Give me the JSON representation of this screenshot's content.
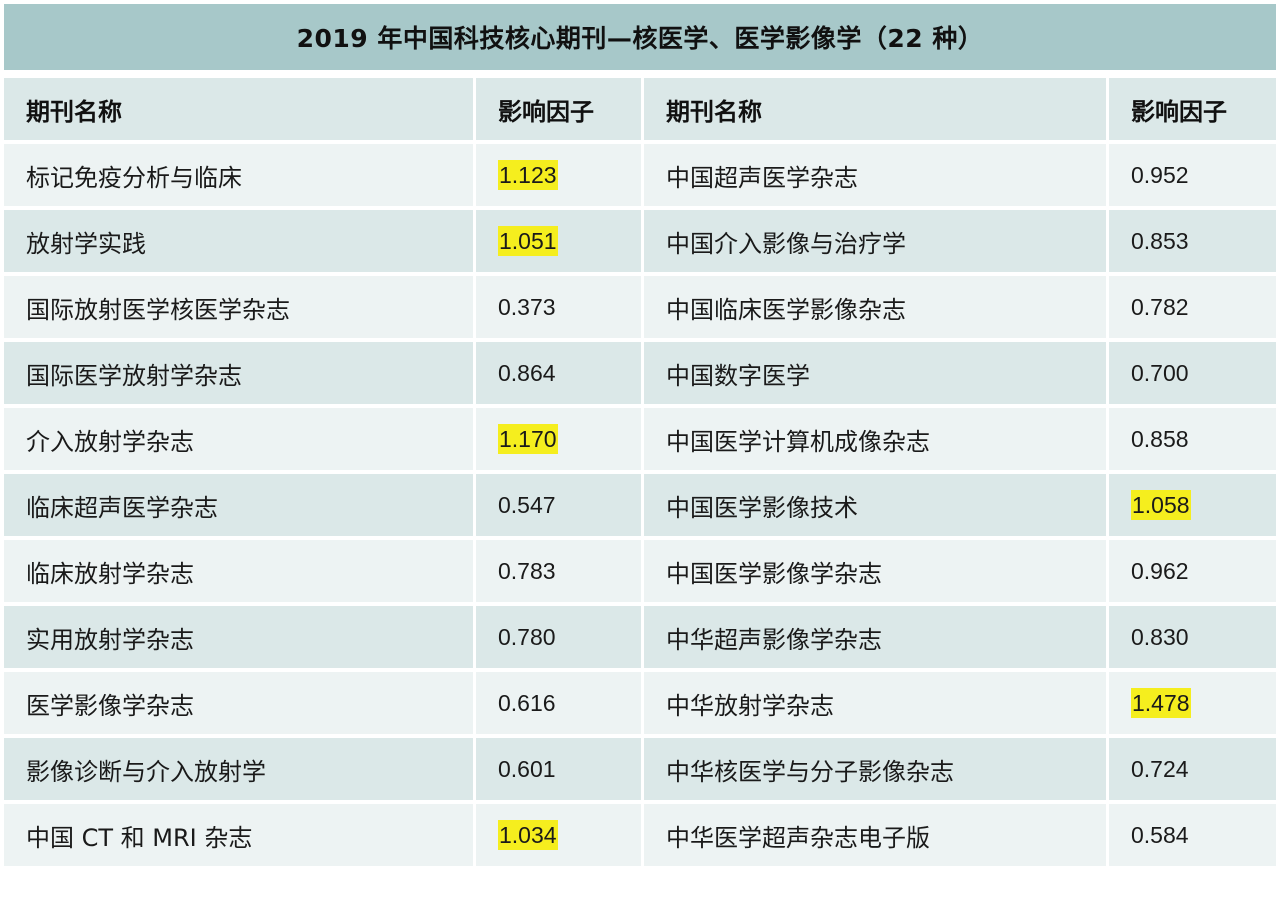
{
  "title": "2019 年中国科技核心期刊—核医学、医学影像学（22 种）",
  "headers": {
    "name_left": "期刊名称",
    "if_left": "影响因子",
    "name_right": "期刊名称",
    "if_right": "影响因子"
  },
  "highlight_color": "#f5ee1e",
  "rows": [
    {
      "left_name": "标记免疫分析与临床",
      "left_if": "1.123",
      "left_hl": true,
      "right_name": "中国超声医学杂志",
      "right_if": "0.952",
      "right_hl": false
    },
    {
      "left_name": "放射学实践",
      "left_if": "1.051",
      "left_hl": true,
      "right_name": "中国介入影像与治疗学",
      "right_if": "0.853",
      "right_hl": false
    },
    {
      "left_name": "国际放射医学核医学杂志",
      "left_if": "0.373",
      "left_hl": false,
      "right_name": "中国临床医学影像杂志",
      "right_if": "0.782",
      "right_hl": false
    },
    {
      "left_name": "国际医学放射学杂志",
      "left_if": "0.864",
      "left_hl": false,
      "right_name": "中国数字医学",
      "right_if": "0.700",
      "right_hl": false
    },
    {
      "left_name": "介入放射学杂志",
      "left_if": "1.170",
      "left_hl": true,
      "right_name": "中国医学计算机成像杂志",
      "right_if": "0.858",
      "right_hl": false
    },
    {
      "left_name": "临床超声医学杂志",
      "left_if": "0.547",
      "left_hl": false,
      "right_name": "中国医学影像技术",
      "right_if": "1.058",
      "right_hl": true
    },
    {
      "left_name": "临床放射学杂志",
      "left_if": "0.783",
      "left_hl": false,
      "right_name": "中国医学影像学杂志",
      "right_if": "0.962",
      "right_hl": false
    },
    {
      "left_name": "实用放射学杂志",
      "left_if": "0.780",
      "left_hl": false,
      "right_name": "中华超声影像学杂志",
      "right_if": "0.830",
      "right_hl": false
    },
    {
      "left_name": "医学影像学杂志",
      "left_if": "0.616",
      "left_hl": false,
      "right_name": "中华放射学杂志",
      "right_if": "1.478",
      "right_hl": true
    },
    {
      "left_name": "影像诊断与介入放射学",
      "left_if": "0.601",
      "left_hl": false,
      "right_name": "中华核医学与分子影像杂志",
      "right_if": "0.724",
      "right_hl": false
    },
    {
      "left_name": "中国 CT 和 MRI 杂志",
      "left_if": "1.034",
      "left_hl": true,
      "right_name": "中华医学超声杂志电子版",
      "right_if": "0.584",
      "right_hl": false
    }
  ]
}
